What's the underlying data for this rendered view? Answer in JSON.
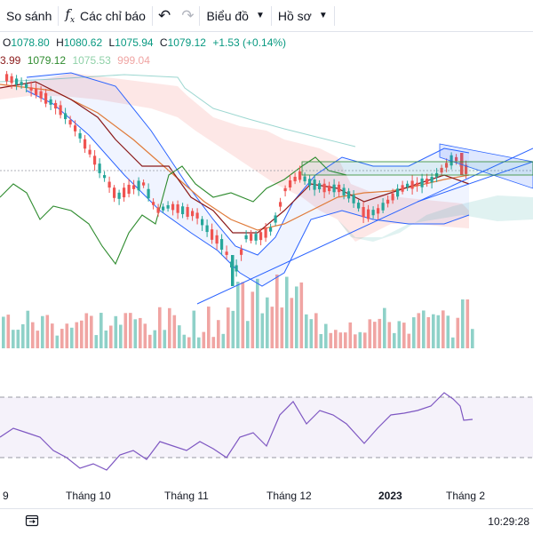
{
  "toolbar": {
    "compare_label": "So sánh",
    "indicators_label": "Các chỉ báo",
    "chart_label": "Biểu đồ",
    "profile_label": "Hồ sơ"
  },
  "ohlc": {
    "o_label": "O",
    "o_value": "1078.80",
    "h_label": "H",
    "h_value": "1080.62",
    "l_label": "L",
    "l_value": "1075.94",
    "c_label": "C",
    "c_value": "1079.12",
    "change": "+1.53 (+0.14%)"
  },
  "ichimoku": {
    "v1": "3.99",
    "v2": "1079.12",
    "v3": "1075.53",
    "v4": "999.04"
  },
  "colors": {
    "up": "#26a69a",
    "down": "#ef5350",
    "vol_up": "#8fd1c8",
    "vol_down": "#f0a5a3",
    "rsi": "#7e57c2",
    "boll": "#2962ff",
    "conversion": "#8b1a1a",
    "base": "#e07b3a",
    "lagging": "#2e8b2e",
    "trendline": "#2962ff"
  },
  "xaxis": {
    "labels": [
      "9",
      "Tháng 10",
      "Tháng 11",
      "Tháng 12",
      "2023",
      "Tháng 2"
    ]
  },
  "footer": {
    "time": "10:29:28",
    "icon": "calendar-range-icon"
  }
}
